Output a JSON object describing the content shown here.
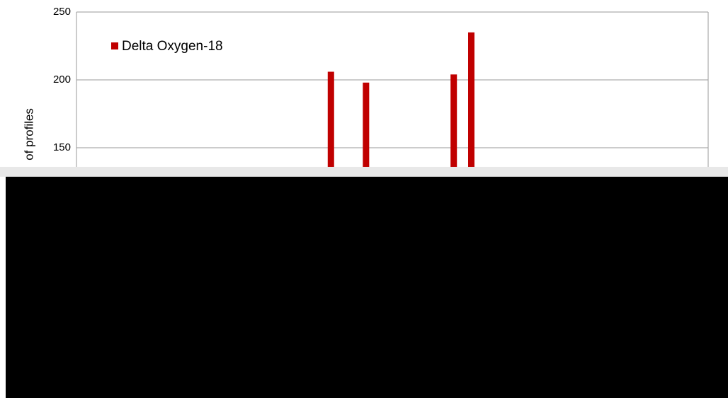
{
  "chart_data": {
    "type": "bar",
    "y_label": "of profiles",
    "categories": [
      null,
      null,
      null,
      null,
      null,
      null,
      null,
      null,
      null,
      null,
      null,
      null,
      null,
      null,
      null,
      null,
      null,
      null,
      null,
      null,
      null,
      null,
      null,
      null,
      null,
      null,
      null,
      null,
      null,
      null,
      null,
      null,
      null,
      null,
      null,
      null
    ],
    "series": [
      {
        "name": "Delta Oxygen-18",
        "color": "#c00000",
        "values": [
          null,
          null,
          null,
          null,
          null,
          null,
          null,
          null,
          null,
          null,
          null,
          null,
          null,
          null,
          206,
          null,
          198,
          null,
          null,
          null,
          null,
          204,
          235,
          null,
          null,
          null,
          null,
          null,
          null,
          null,
          null,
          null,
          null,
          null,
          null,
          null
        ]
      }
    ],
    "ylim": [
      0,
      250
    ],
    "yticks": [
      150,
      200,
      250
    ],
    "grid": true
  }
}
